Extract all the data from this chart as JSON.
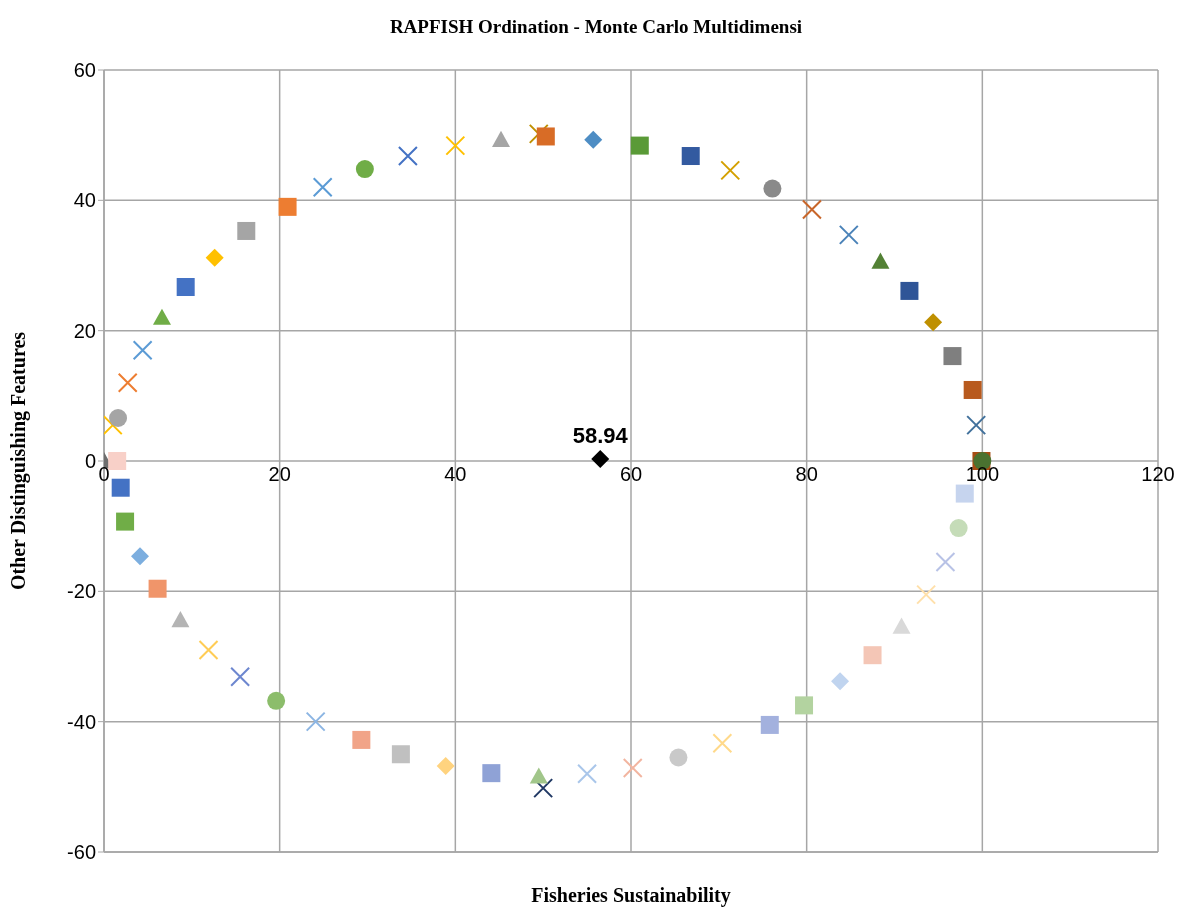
{
  "chart_data": {
    "type": "scatter",
    "title": "RAPFISH Ordination - Monte Carlo Multidimensi",
    "xlabel": "Fisheries Sustainability",
    "ylabel": "Other Distinguishing Features",
    "xlim": [
      0,
      120
    ],
    "xticks": [
      0,
      20,
      40,
      60,
      80,
      100,
      120
    ],
    "ylim": [
      -60,
      60
    ],
    "yticks": [
      -60,
      -40,
      -20,
      0,
      20,
      40,
      60
    ],
    "grid": true,
    "annotations": [
      {
        "text": "58.94",
        "x": 56.5,
        "y": 0.3
      }
    ],
    "series": [
      {
        "marker": "triangle",
        "color": "#6e6e6e",
        "x": [
          0
        ],
        "values": [
          0
        ]
      },
      {
        "marker": "square",
        "color": "#f8d0c8",
        "x": [
          1.5
        ],
        "values": [
          0
        ]
      },
      {
        "marker": "cross",
        "color": "#ffc000",
        "x": [
          1
        ],
        "values": [
          5.5
        ]
      },
      {
        "marker": "circle",
        "color": "#a5a5a5",
        "x": [
          1.6
        ],
        "values": [
          6.6
        ]
      },
      {
        "marker": "cross",
        "color": "#ed7d31",
        "x": [
          2.7
        ],
        "values": [
          12
        ]
      },
      {
        "marker": "cross",
        "color": "#5b9bd5",
        "x": [
          4.4
        ],
        "values": [
          17
        ]
      },
      {
        "marker": "triangle",
        "color": "#70ad47",
        "x": [
          6.6
        ],
        "values": [
          22
        ]
      },
      {
        "marker": "square",
        "color": "#4472c4",
        "x": [
          9.3
        ],
        "values": [
          26.7
        ]
      },
      {
        "marker": "diamond",
        "color": "#ffc000",
        "x": [
          12.6
        ],
        "values": [
          31.2
        ]
      },
      {
        "marker": "square",
        "color": "#a5a5a5",
        "x": [
          16.2
        ],
        "values": [
          35.3
        ]
      },
      {
        "marker": "square",
        "color": "#ed7d31",
        "x": [
          20.9
        ],
        "values": [
          39
        ]
      },
      {
        "marker": "cross",
        "color": "#5b9bd5",
        "x": [
          24.9
        ],
        "values": [
          42
        ]
      },
      {
        "marker": "circle",
        "color": "#70ad47",
        "x": [
          29.7
        ],
        "values": [
          44.8
        ]
      },
      {
        "marker": "cross",
        "color": "#4472c4",
        "x": [
          34.6
        ],
        "values": [
          46.8
        ]
      },
      {
        "marker": "cross",
        "color": "#ffc000",
        "x": [
          40
        ],
        "values": [
          48.4
        ]
      },
      {
        "marker": "triangle",
        "color": "#a5a5a5",
        "x": [
          45.2
        ],
        "values": [
          49.3
        ]
      },
      {
        "marker": "cross",
        "color": "#bf9000",
        "x": [
          49.5
        ],
        "values": [
          50.2
        ]
      },
      {
        "marker": "square",
        "color": "#d86c26",
        "x": [
          50.3
        ],
        "values": [
          49.8
        ]
      },
      {
        "marker": "diamond",
        "color": "#4e8dc4",
        "x": [
          55.7
        ],
        "values": [
          49.3
        ]
      },
      {
        "marker": "square",
        "color": "#5a9a37",
        "x": [
          61
        ],
        "values": [
          48.4
        ]
      },
      {
        "marker": "square",
        "color": "#335aa0",
        "x": [
          66.8
        ],
        "values": [
          46.8
        ]
      },
      {
        "marker": "cross",
        "color": "#d4a000",
        "x": [
          71.3
        ],
        "values": [
          44.6
        ]
      },
      {
        "marker": "circle",
        "color": "#8a8a8a",
        "x": [
          76.1
        ],
        "values": [
          41.8
        ]
      },
      {
        "marker": "cross",
        "color": "#c8662a",
        "x": [
          80.6
        ],
        "values": [
          38.6
        ]
      },
      {
        "marker": "cross",
        "color": "#4a82b8",
        "x": [
          84.8
        ],
        "values": [
          34.7
        ]
      },
      {
        "marker": "triangle",
        "color": "#538135",
        "x": [
          88.4
        ],
        "values": [
          30.6
        ]
      },
      {
        "marker": "square",
        "color": "#2f5597",
        "x": [
          91.7
        ],
        "values": [
          26.1
        ]
      },
      {
        "marker": "diamond",
        "color": "#bf9000",
        "x": [
          94.4
        ],
        "values": [
          21.3
        ]
      },
      {
        "marker": "square",
        "color": "#7f7f7f",
        "x": [
          96.6
        ],
        "values": [
          16.1
        ]
      },
      {
        "marker": "square",
        "color": "#b85a1e",
        "x": [
          98.9
        ],
        "values": [
          10.9
        ]
      },
      {
        "marker": "cross",
        "color": "#41719c",
        "x": [
          99.3
        ],
        "values": [
          5.5
        ]
      },
      {
        "marker": "square",
        "color": "#a64d14",
        "x": [
          99.9
        ],
        "values": [
          0
        ]
      },
      {
        "marker": "circle",
        "color": "#4a7230",
        "x": [
          100
        ],
        "values": [
          0
        ]
      },
      {
        "marker": "square",
        "color": "#4472c4",
        "x": [
          1.9
        ],
        "values": [
          -4.1
        ]
      },
      {
        "marker": "square",
        "color": "#70ad47",
        "x": [
          2.4
        ],
        "values": [
          -9.3
        ]
      },
      {
        "marker": "diamond",
        "color": "#7caedf",
        "x": [
          4.1
        ],
        "values": [
          -14.6
        ]
      },
      {
        "marker": "square",
        "color": "#f0956a",
        "x": [
          6.1
        ],
        "values": [
          -19.6
        ]
      },
      {
        "marker": "triangle",
        "color": "#b4b4b4",
        "x": [
          8.7
        ],
        "values": [
          -24.4
        ]
      },
      {
        "marker": "cross",
        "color": "#ffcc55",
        "x": [
          11.9
        ],
        "values": [
          -29
        ]
      },
      {
        "marker": "cross",
        "color": "#6d87cf",
        "x": [
          15.5
        ],
        "values": [
          -33.1
        ]
      },
      {
        "marker": "circle",
        "color": "#8cbd6b",
        "x": [
          19.6
        ],
        "values": [
          -36.8
        ]
      },
      {
        "marker": "cross",
        "color": "#8cb5e3",
        "x": [
          24.1
        ],
        "values": [
          -40
        ]
      },
      {
        "marker": "square",
        "color": "#f1a488",
        "x": [
          29.3
        ],
        "values": [
          -42.8
        ]
      },
      {
        "marker": "square",
        "color": "#c0c0c0",
        "x": [
          33.8
        ],
        "values": [
          -45
        ]
      },
      {
        "marker": "diamond",
        "color": "#ffd37f",
        "x": [
          38.9
        ],
        "values": [
          -46.8
        ]
      },
      {
        "marker": "square",
        "color": "#8fa2d6",
        "x": [
          44.1
        ],
        "values": [
          -47.9
        ]
      },
      {
        "marker": "cross",
        "color": "#203864",
        "x": [
          50
        ],
        "values": [
          -50.2
        ]
      },
      {
        "marker": "triangle",
        "color": "#a1c68a",
        "x": [
          49.5
        ],
        "values": [
          -48.4
        ]
      },
      {
        "marker": "cross",
        "color": "#a9c6ea",
        "x": [
          55
        ],
        "values": [
          -48
        ]
      },
      {
        "marker": "cross",
        "color": "#f2b5a0",
        "x": [
          60.2
        ],
        "values": [
          -47.1
        ]
      },
      {
        "marker": "circle",
        "color": "#c9c9c9",
        "x": [
          65.4
        ],
        "values": [
          -45.5
        ]
      },
      {
        "marker": "cross",
        "color": "#ffd98a",
        "x": [
          70.4
        ],
        "values": [
          -43.3
        ]
      },
      {
        "marker": "square",
        "color": "#a3b1de",
        "x": [
          75.8
        ],
        "values": [
          -40.5
        ]
      },
      {
        "marker": "square",
        "color": "#b3d3a0",
        "x": [
          79.7
        ],
        "values": [
          -37.5
        ]
      },
      {
        "marker": "diamond",
        "color": "#c0d4ef",
        "x": [
          83.8
        ],
        "values": [
          -33.8
        ]
      },
      {
        "marker": "square",
        "color": "#f4c6b6",
        "x": [
          87.5
        ],
        "values": [
          -29.8
        ]
      },
      {
        "marker": "triangle",
        "color": "#d9d9d9",
        "x": [
          90.8
        ],
        "values": [
          -25.4
        ]
      },
      {
        "marker": "cross",
        "color": "#ffe0aa",
        "x": [
          93.6
        ],
        "values": [
          -20.5
        ]
      },
      {
        "marker": "cross",
        "color": "#b8c2e6",
        "x": [
          95.8
        ],
        "values": [
          -15.5
        ]
      },
      {
        "marker": "circle",
        "color": "#c5dcb8",
        "x": [
          97.3
        ],
        "values": [
          -10.3
        ]
      },
      {
        "marker": "square",
        "color": "#c6d4ee",
        "x": [
          98
        ],
        "values": [
          -5
        ]
      },
      {
        "marker": "diamond",
        "color": "#000000",
        "x": [
          56.5
        ],
        "values": [
          0.3
        ]
      }
    ]
  }
}
